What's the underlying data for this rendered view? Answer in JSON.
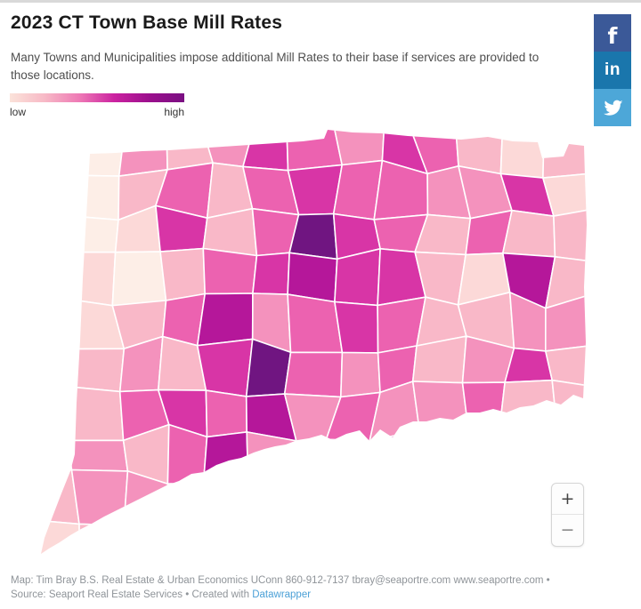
{
  "header": {
    "title": "2023 CT Town Base Mill Rates",
    "subtitle": "Many Towns and Municipalities impose additional Mill Rates to their base if services are provided to those locations."
  },
  "legend": {
    "low_label": "low",
    "high_label": "high",
    "gradient_stops": [
      "#fbe3da",
      "#f7b9c6",
      "#ee79b5",
      "#cb22a0",
      "#9b0f8d",
      "#7a0f82"
    ]
  },
  "share": {
    "facebook_label": "f",
    "linkedin_label": "in",
    "colors": {
      "facebook": "#3b5998",
      "linkedin": "#1a76ac",
      "twitter": "#4da7d8"
    }
  },
  "zoom_controls": {
    "zoom_in": "+",
    "zoom_out": "−"
  },
  "footer": {
    "line1": "Map: Tim Bray B.S. Real Estate & Urban Economics UConn 860-912-7137 tbray@seaportre.com www.seaportre.com •",
    "line2_prefix": "Source: Seaport Real Estate Services • Created with ",
    "link_label": "Datawrapper"
  },
  "chart_data": {
    "type": "heatmap",
    "subtype": "choropleth-map",
    "title": "2023 CT Town Base Mill Rates",
    "region": "Connecticut, USA (town-level polygons)",
    "value_label": "Base Mill Rate",
    "scale": {
      "low": "low",
      "high": "high"
    },
    "legend_position": "top-left",
    "palette": [
      "#fdeee7",
      "#fcd9d8",
      "#f9b8c8",
      "#f492bd",
      "#ec62b0",
      "#d835a6",
      "#b5179a",
      "#701581"
    ],
    "levels": [
      "1032354354212",
      "1024245443351",
      "1015247542422",
      "1102456552162",
      "2124634542233",
      "1232574342352",
      "2245463433422",
      "1324632352321",
      "2332432221211",
      "1213211211111"
    ]
  }
}
